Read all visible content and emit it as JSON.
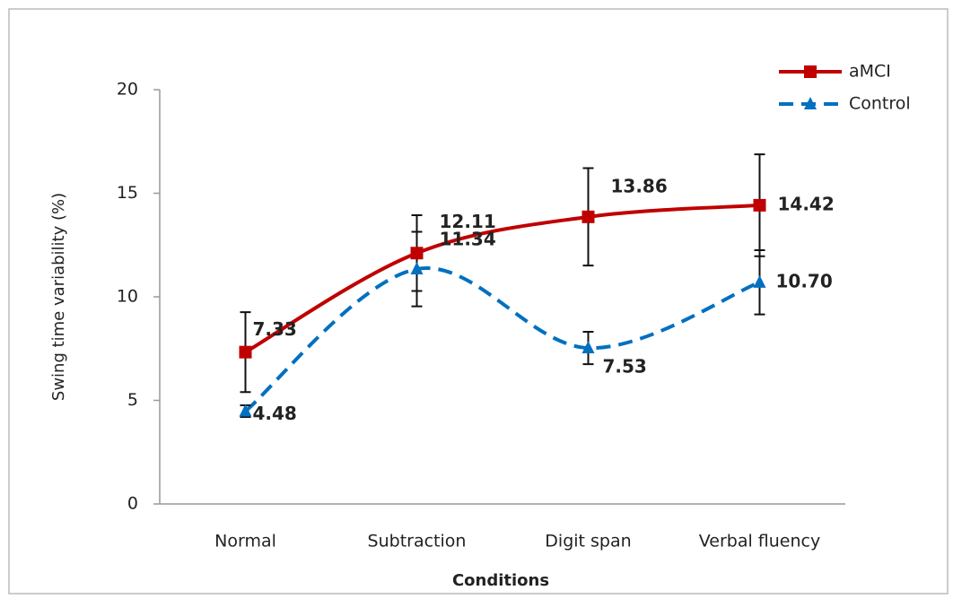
{
  "chart_data": {
    "type": "line",
    "y_label": "Swing time variability (%)",
    "x_label": "Conditions",
    "categories": [
      "Normal",
      "Subtraction",
      "Digit span",
      "Verbal fluency"
    ],
    "ylim": [
      0,
      20
    ],
    "yticks": [
      0,
      5,
      10,
      15,
      20
    ],
    "grid": false,
    "legend": "top-right",
    "series": [
      {
        "name": "aMCI",
        "color": "#c00000",
        "line_style": "solid",
        "marker": "square",
        "values": [
          7.33,
          12.11,
          13.86,
          14.42
        ],
        "value_labels": [
          "7.33",
          "12.11",
          "13.86",
          "14.42"
        ],
        "errors": [
          1.93,
          1.83,
          2.35,
          2.46
        ]
      },
      {
        "name": "Control",
        "color": "#0070c0",
        "line_style": "dashed",
        "marker": "triangle",
        "values": [
          4.48,
          11.34,
          7.53,
          10.7
        ],
        "value_labels": [
          "4.48",
          "11.34",
          "7.53",
          "10.70"
        ],
        "errors": [
          0.28,
          1.8,
          0.78,
          1.55
        ]
      }
    ]
  }
}
